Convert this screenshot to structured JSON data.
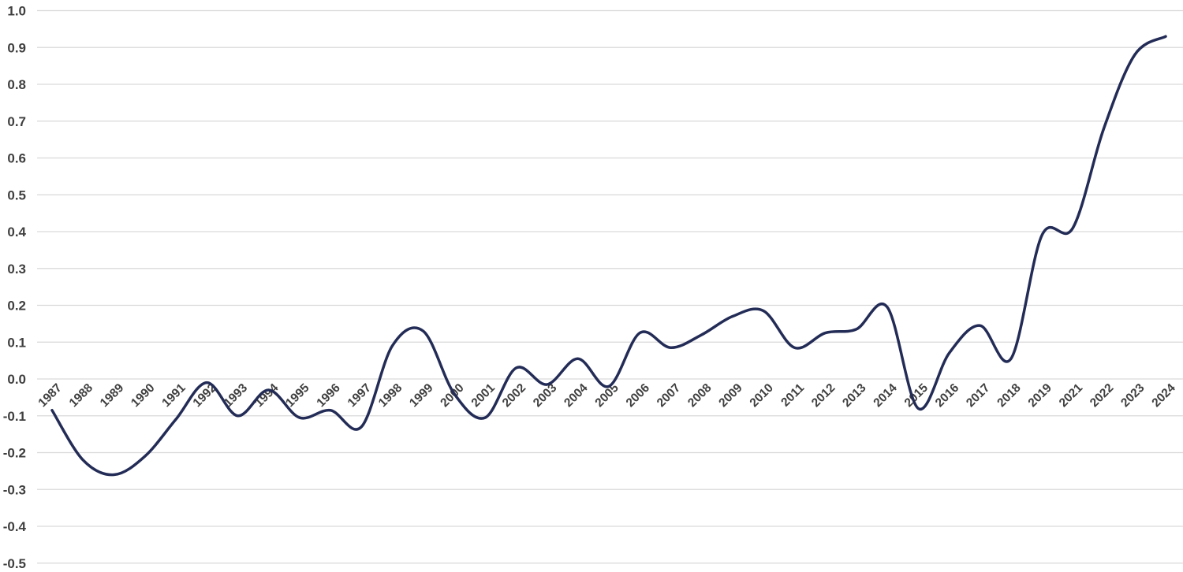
{
  "chart_data": {
    "type": "line",
    "title": "",
    "xlabel": "",
    "ylabel": "",
    "legend": "none",
    "grid": true,
    "smooth": true,
    "categories": [
      "1987",
      "1988",
      "1989",
      "1990",
      "1991",
      "1992",
      "1993",
      "1994",
      "1995",
      "1996",
      "1997",
      "1998",
      "1999",
      "2000",
      "2001",
      "2002",
      "2003",
      "2004",
      "2005",
      "2006",
      "2007",
      "2008",
      "2009",
      "2010",
      "2011",
      "2012",
      "2013",
      "2014",
      "2015",
      "2016",
      "2017",
      "2018",
      "2019",
      "2021",
      "2022",
      "2023",
      "2024"
    ],
    "values": [
      -0.085,
      -0.22,
      -0.26,
      -0.21,
      -0.11,
      -0.01,
      -0.1,
      -0.03,
      -0.105,
      -0.085,
      -0.13,
      0.09,
      0.13,
      -0.04,
      -0.105,
      0.03,
      -0.015,
      0.055,
      -0.02,
      0.125,
      0.085,
      0.12,
      0.17,
      0.185,
      0.085,
      0.125,
      0.135,
      0.195,
      -0.08,
      0.07,
      0.145,
      0.055,
      0.39,
      0.41,
      0.68,
      0.88,
      0.93
    ],
    "ylim": [
      -0.5,
      1.0
    ],
    "ytick_step": 0.1,
    "ytick_labels": [
      "1.0",
      "0.9",
      "0.8",
      "0.7",
      "0.6",
      "0.5",
      "0.4",
      "0.3",
      "0.2",
      "0.1",
      "0.0",
      "-0.1",
      "-0.2",
      "-0.3",
      "-0.4",
      "-0.5"
    ],
    "colors": {
      "line": "#232C56",
      "gridline": "#D9D9D9",
      "tick_label": "#3F3F3F",
      "background": "#FFFFFF"
    },
    "line_width": 3.5
  }
}
